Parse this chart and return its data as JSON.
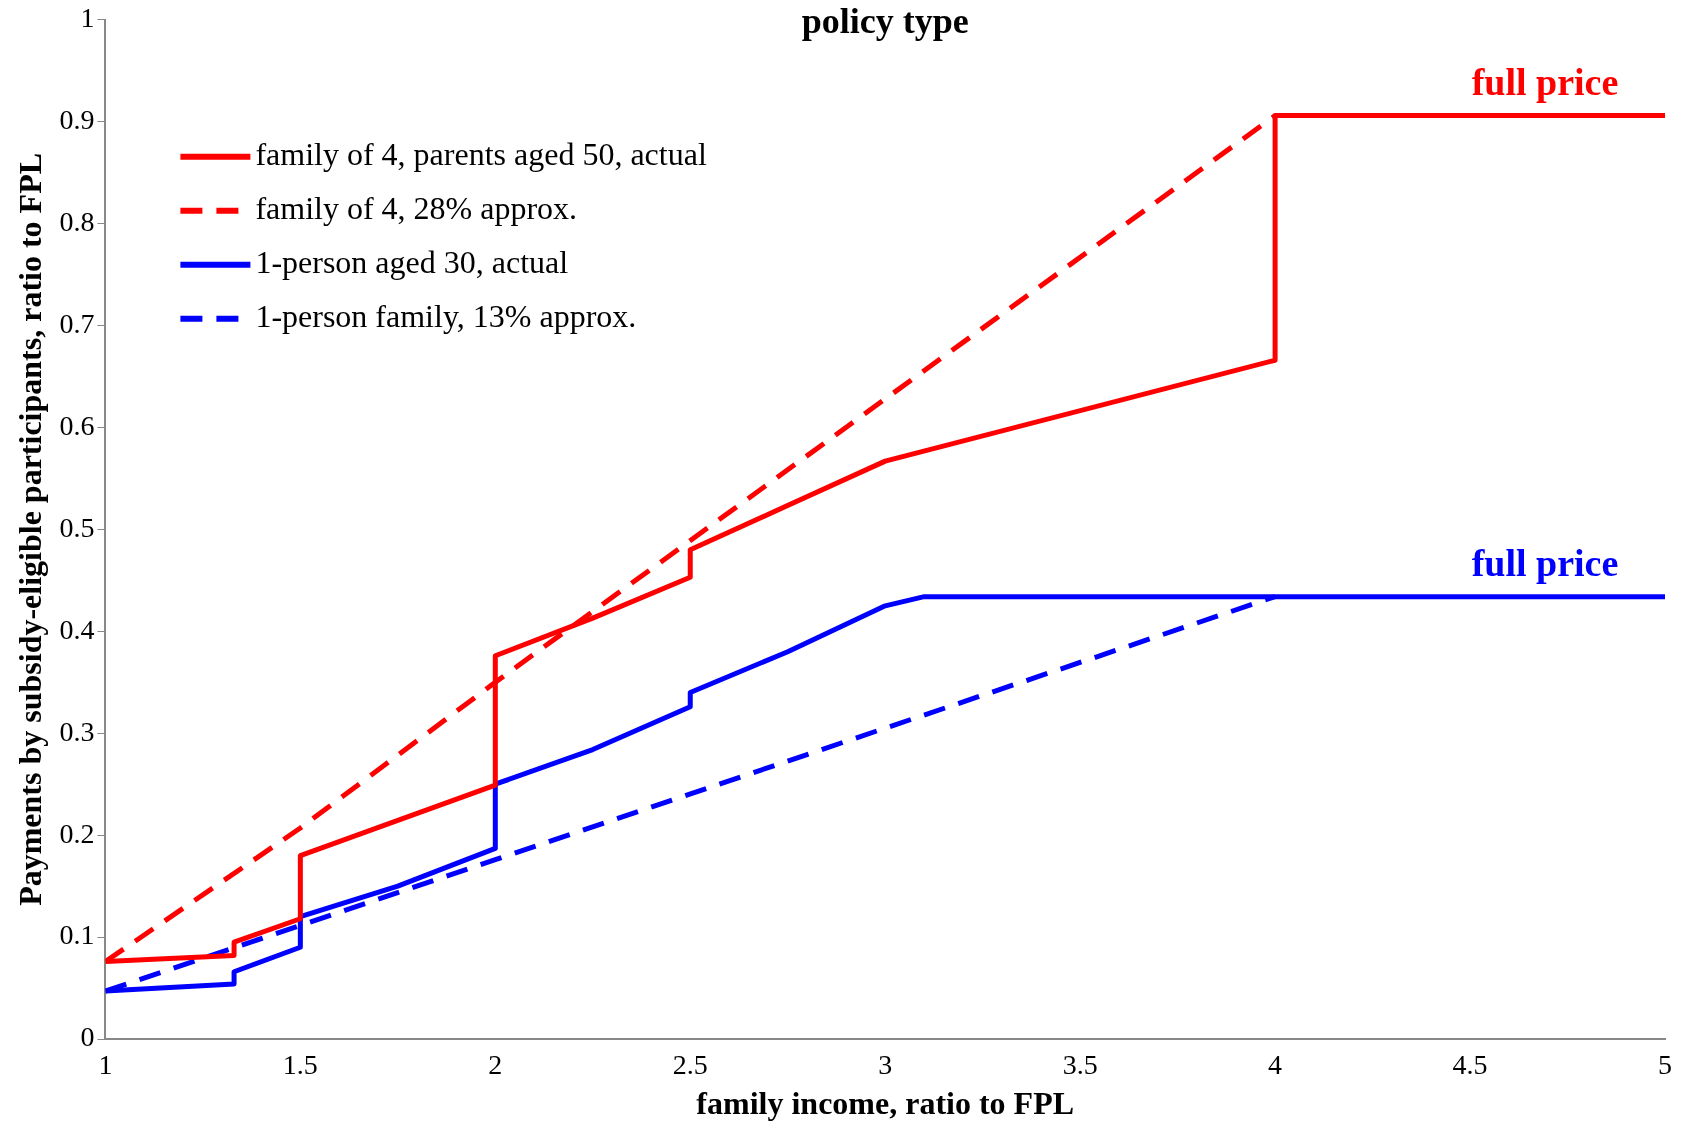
{
  "chart_data": {
    "type": "line",
    "title": "policy type",
    "xlabel": "family income, ratio to FPL",
    "ylabel": "Payments by subsidy-eligible participants, ratio to FPL",
    "xlim": [
      1,
      5
    ],
    "xticks": [
      1,
      1.5,
      2,
      2.5,
      3,
      3.5,
      4,
      4.5,
      5
    ],
    "ylim": [
      0,
      1
    ],
    "yticks": [
      0,
      0.1,
      0.2,
      0.3,
      0.4,
      0.5,
      0.6,
      0.7,
      0.8,
      0.9,
      1
    ],
    "grid": false,
    "legend": "top left",
    "marker": "none",
    "series": [
      {
        "name": "family of 4, parents aged 50, actual",
        "color": "#ff0000",
        "line_style": "solid",
        "x": [
          1,
          1.33,
          1.33,
          1.5,
          1.5,
          2,
          2,
          2.25,
          2.5,
          2.5,
          3,
          4,
          4,
          5
        ],
        "values": [
          0.076,
          0.082,
          0.095,
          0.118,
          0.18,
          0.249,
          0.376,
          0.413,
          0.453,
          0.48,
          0.567,
          0.666,
          0.906,
          0.906
        ]
      },
      {
        "name": "family of 4, 28% approx.",
        "color": "#ff0000",
        "line_style": "dashed",
        "x": [
          1,
          1.5,
          2,
          3,
          4
        ],
        "values": [
          0.076,
          0.207,
          0.35,
          0.628,
          0.906
        ]
      },
      {
        "name": "1-person aged 30, actual",
        "color": "#0000ff",
        "line_style": "solid",
        "x": [
          1,
          1.33,
          1.33,
          1.5,
          1.5,
          1.75,
          2,
          2,
          2.25,
          2.5,
          2.5,
          2.75,
          3,
          3.1,
          5
        ],
        "values": [
          0.047,
          0.054,
          0.066,
          0.09,
          0.12,
          0.15,
          0.187,
          0.25,
          0.284,
          0.326,
          0.34,
          0.38,
          0.425,
          0.434,
          0.434
        ]
      },
      {
        "name": "1-person family, 13% approx.",
        "color": "#0000ff",
        "line_style": "dashed",
        "x": [
          1,
          2,
          3,
          4
        ],
        "values": [
          0.047,
          0.176,
          0.305,
          0.434
        ]
      }
    ],
    "annotations": [
      {
        "text": "full price",
        "x": 5,
        "y": 0.906
      },
      {
        "text": "full price",
        "x": 5,
        "y": 0.434
      }
    ]
  }
}
